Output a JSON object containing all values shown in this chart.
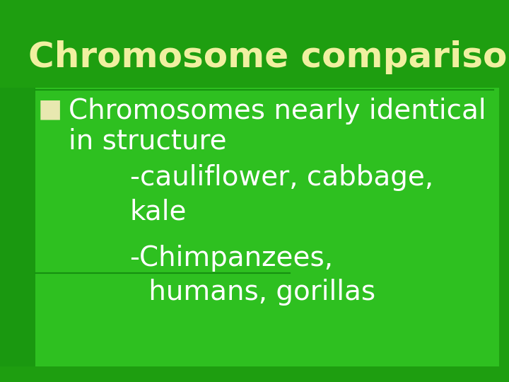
{
  "title": "Chromosome comparisons",
  "title_color": "#f0f0a0",
  "title_fontsize": 36,
  "bg_color": "#1e9e10",
  "panel1_color": "#28b820",
  "panel2_color": "#28b820",
  "panel3_color": "#30c828",
  "bullet_color": "#e8e8b0",
  "text_white": "#ffffff",
  "line1": "Chromosomes nearly identical",
  "line2": "in structure",
  "line3": "-cauliflower, cabbage,",
  "line4": "kale",
  "line5": "-Chimpanzees,",
  "line6": " humans, gorillas",
  "fontsize_body": 28,
  "separator_color": "#169010"
}
